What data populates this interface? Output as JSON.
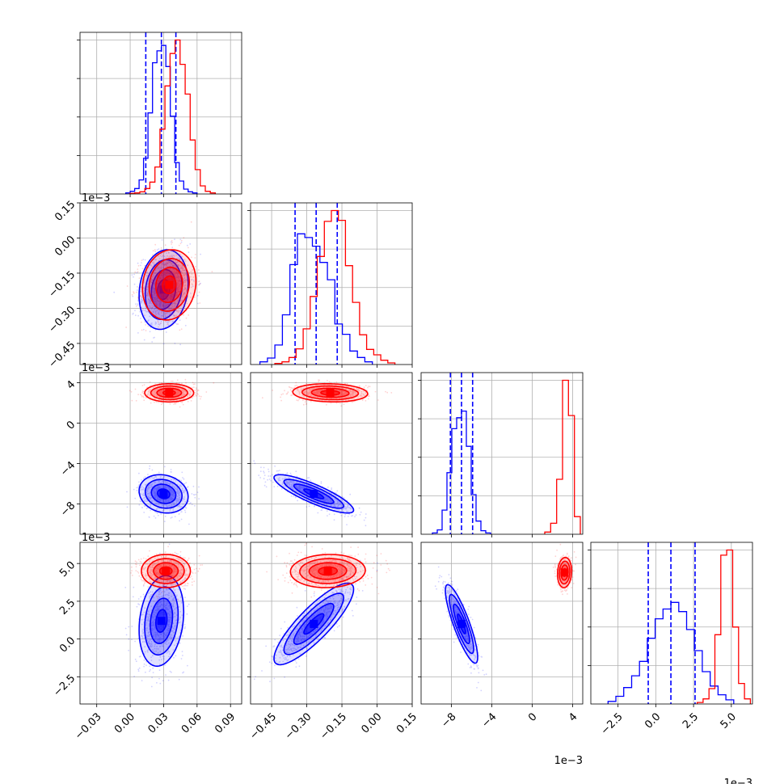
{
  "chart_data": {
    "type": "corner",
    "title": "",
    "parameters": [
      {
        "range": [
          -0.045,
          0.1
        ],
        "ticks": [
          -0.03,
          0.0,
          0.03,
          0.06,
          0.09
        ],
        "tick_labels": [
          "−0.03",
          "0.00",
          "0.03",
          "0.06",
          "0.09"
        ],
        "offset_text": ""
      },
      {
        "range": [
          -0.54,
          0.15
        ],
        "ticks": [
          -0.45,
          -0.3,
          -0.15,
          0.0,
          0.15
        ],
        "tick_labels": [
          "−0.45",
          "−0.30",
          "−0.15",
          "0.00",
          "0.15"
        ],
        "offset_text": "1e−3"
      },
      {
        "range": [
          -11.0,
          5.0
        ],
        "ticks": [
          -8,
          -4,
          0,
          4
        ],
        "tick_labels": [
          "−8",
          "−4",
          "0",
          "4"
        ],
        "offset_text": "1e−3"
      },
      {
        "range": [
          -4.3,
          6.4
        ],
        "ticks": [
          -2.5,
          0.0,
          2.5,
          5.0
        ],
        "tick_labels": [
          "−2.5",
          "0.0",
          "2.5",
          "5.0"
        ],
        "offset_text": "1e−3"
      }
    ],
    "row_ticks": [
      null,
      {
        "ticks": [
          -0.45,
          -0.3,
          -0.15,
          0.0,
          0.15
        ],
        "tick_labels": [
          "−0.45",
          "−0.30",
          "−0.15",
          "0.00",
          "0.15"
        ]
      },
      {
        "ticks": [
          -8,
          -4,
          0,
          4
        ],
        "tick_labels": [
          "−8",
          "−4",
          "0",
          "4"
        ]
      },
      {
        "ticks": [
          -2.5,
          0.0,
          2.5,
          5.0
        ],
        "tick_labels": [
          "−2.5",
          "0.0",
          "2.5",
          "5.0"
        ]
      }
    ],
    "grid": true,
    "series": [
      {
        "color": "#0000ff",
        "mean": [
          0.028,
          -0.26,
          -7.0,
          1.0
        ],
        "std": [
          0.01,
          0.075,
          0.9,
          1.3
        ],
        "quantiles": [
          [
            0.014,
            0.028,
            0.041
          ],
          [
            -0.35,
            -0.26,
            -0.17
          ],
          [
            -8.1,
            -7.0,
            -5.9
          ],
          [
            -0.5,
            1.0,
            2.6
          ]
        ],
        "show_quantiles": true,
        "pairs": {
          "1-0": {
            "center": [
              0.03,
              -0.22
            ],
            "std": [
              0.011,
              0.085
            ],
            "corr": 0.15
          },
          "2-0": {
            "center": [
              0.03,
              -7.0
            ],
            "std": [
              0.011,
              0.95
            ],
            "corr": -0.15
          },
          "2-1": {
            "center": [
              -0.27,
              -7.0
            ],
            "std": [
              0.085,
              0.95
            ],
            "corr": -0.85
          },
          "3-0": {
            "center": [
              0.028,
              1.2
            ],
            "std": [
              0.01,
              1.5
            ],
            "corr": 0.2
          },
          "3-1": {
            "center": [
              -0.27,
              1.0
            ],
            "std": [
              0.085,
              1.35
            ],
            "corr": 0.85
          },
          "3-2": {
            "center": [
              -7.0,
              1.0
            ],
            "std": [
              0.8,
              1.3
            ],
            "corr": -0.85
          }
        },
        "hist": [
          [
            0.2,
            0.5,
            1.0,
            2.6,
            6.6,
            15.0,
            24.3,
            26.5,
            27.5,
            23.6,
            14.4,
            5.8,
            2.4,
            0.9,
            0.4,
            0.2
          ],
          [
            0.5,
            1.2,
            3.6,
            9.2,
            18.5,
            24.2,
            23.5,
            21.9,
            18.9,
            15.7,
            7.5,
            5.6,
            2.5,
            1.3,
            0.5
          ],
          [
            0.3,
            1.0,
            5.5,
            14.0,
            24.0,
            26.5,
            28.0,
            20.0,
            9.0,
            3.0,
            0.8,
            0.3
          ],
          [
            0.5,
            1.5,
            3.2,
            5.5,
            8.3,
            12.8,
            16.6,
            18.5,
            19.8,
            18.0,
            14.5,
            10.4,
            6.3,
            3.5,
            1.8,
            0.8
          ]
        ]
      },
      {
        "color": "#ff0000",
        "mean": [
          0.038,
          -0.18,
          3.0,
          4.5
        ],
        "std": [
          0.012,
          0.08,
          0.55,
          0.55
        ],
        "pairs": {
          "1-0": {
            "center": [
              0.035,
              -0.2
            ],
            "std": [
              0.012,
              0.075
            ],
            "corr": 0.1
          },
          "2-0": {
            "center": [
              0.035,
              3.0
            ],
            "std": [
              0.011,
              0.45
            ],
            "corr": 0.0
          },
          "2-1": {
            "center": [
              -0.2,
              3.0
            ],
            "std": [
              0.08,
              0.45
            ],
            "corr": -0.1
          },
          "3-0": {
            "center": [
              0.032,
              4.5
            ],
            "std": [
              0.011,
              0.55
            ],
            "corr": 0.0
          },
          "3-1": {
            "center": [
              -0.21,
              4.5
            ],
            "std": [
              0.08,
              0.55
            ],
            "corr": 0.05
          },
          "3-2": {
            "center": [
              3.2,
              4.4
            ],
            "std": [
              0.35,
              0.5
            ],
            "corr": 0.1
          }
        },
        "hist": [
          [
            0.1,
            0.2,
            0.4,
            1.0,
            2.2,
            5.0,
            12.0,
            20.0,
            26.0,
            28.5,
            24.0,
            18.5,
            10.0,
            4.5,
            1.5,
            0.5,
            0.2
          ],
          [
            0.2,
            0.5,
            1.3,
            2.9,
            6.6,
            12.6,
            20.0,
            26.5,
            28.5,
            26.7,
            18.3,
            11.5,
            5.5,
            2.8,
            1.8,
            0.8,
            0.3
          ],
          [
            0.5,
            2.5,
            12.5,
            35.0,
            27.0,
            4.0
          ],
          [
            0.3,
            1.0,
            3.0,
            13.5,
            29.0,
            30.0,
            15.0,
            4.0,
            1.0
          ]
        ]
      }
    ]
  }
}
